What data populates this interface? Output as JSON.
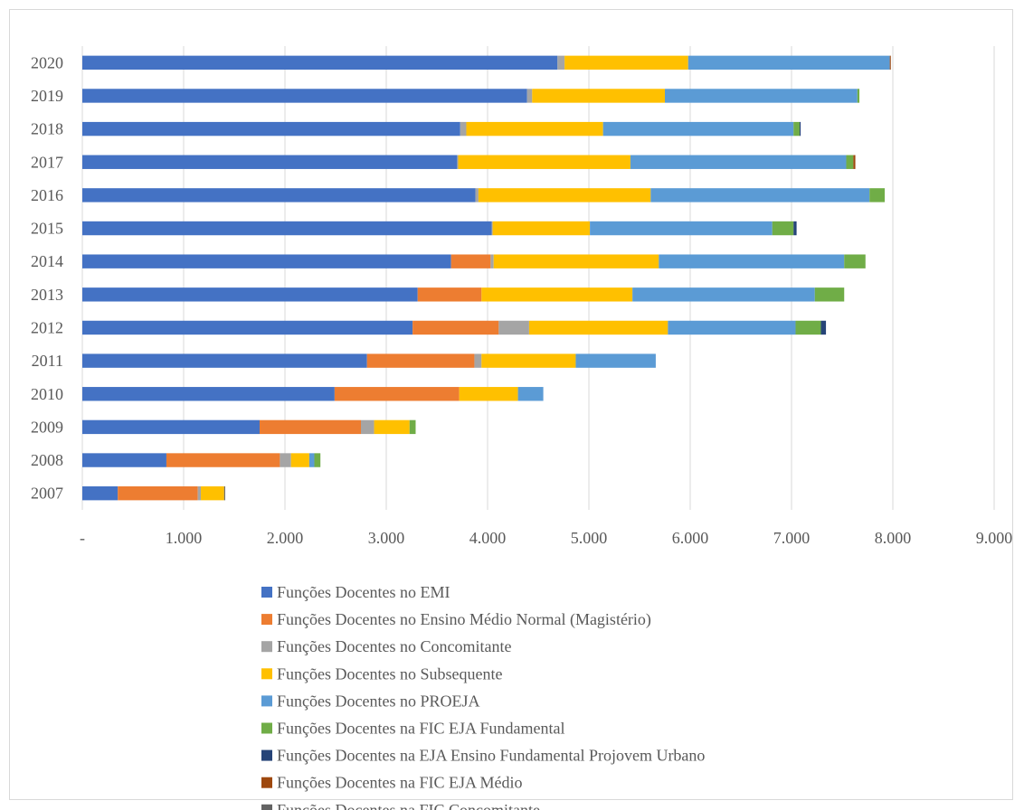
{
  "chart_data": {
    "type": "bar",
    "orientation": "horizontal",
    "stacked": true,
    "title": "",
    "xlabel": "",
    "ylabel": "",
    "xlim": [
      0,
      9000
    ],
    "x_ticks": [
      0,
      1000,
      2000,
      3000,
      4000,
      5000,
      6000,
      7000,
      8000,
      9000
    ],
    "x_tick_labels": [
      "-",
      "1.000",
      "2.000",
      "3.000",
      "4.000",
      "5.000",
      "6.000",
      "7.000",
      "8.000",
      "9.000"
    ],
    "grid": "vertical",
    "legend_position": "bottom",
    "categories": [
      "2020",
      "2019",
      "2018",
      "2017",
      "2016",
      "2015",
      "2014",
      "2013",
      "2012",
      "2011",
      "2010",
      "2009",
      "2008",
      "2007"
    ],
    "series": [
      {
        "name": "Funções Docentes no EMI",
        "color": "#4472C4",
        "values": [
          4690,
          4390,
          3730,
          3700,
          3880,
          4040,
          3640,
          3310,
          3260,
          2810,
          2490,
          1750,
          830,
          350
        ]
      },
      {
        "name": "Funções Docentes no Ensino Médio Normal (Magistério)",
        "color": "#ED7D31",
        "values": [
          0,
          0,
          0,
          0,
          0,
          0,
          390,
          630,
          850,
          1060,
          1230,
          1000,
          1120,
          790
        ]
      },
      {
        "name": "Funções Docentes no Concomitante",
        "color": "#A5A5A5",
        "values": [
          70,
          50,
          60,
          10,
          30,
          10,
          30,
          0,
          300,
          70,
          0,
          130,
          110,
          30
        ]
      },
      {
        "name": "Funções Docentes no Subsequente",
        "color": "#FFC000",
        "values": [
          1220,
          1310,
          1350,
          1700,
          1700,
          960,
          1630,
          1490,
          1370,
          930,
          580,
          350,
          180,
          230
        ]
      },
      {
        "name": "Funções Docentes no PROEJA",
        "color": "#5B9BD5",
        "values": [
          1990,
          1900,
          1880,
          2130,
          2160,
          1800,
          1830,
          1800,
          1260,
          790,
          250,
          0,
          50,
          0
        ]
      },
      {
        "name": "Funções Docentes na FIC EJA Fundamental",
        "color": "#70AD47",
        "values": [
          0,
          20,
          60,
          70,
          150,
          210,
          210,
          290,
          250,
          0,
          0,
          60,
          60,
          0
        ]
      },
      {
        "name": "Funções Docentes na EJA Ensino Fundamental Projovem Urbano",
        "color": "#264478",
        "values": [
          0,
          0,
          10,
          0,
          0,
          30,
          0,
          0,
          50,
          0,
          0,
          0,
          0,
          0
        ]
      },
      {
        "name": "Funções Docentes na FIC EJA Médio",
        "color": "#9E480E",
        "values": [
          10,
          0,
          0,
          20,
          0,
          0,
          0,
          0,
          0,
          0,
          0,
          0,
          0,
          0
        ]
      },
      {
        "name": "Funções Docentes na FIC Concomitante",
        "color": "#636363",
        "values": [
          0,
          0,
          0,
          0,
          0,
          0,
          0,
          0,
          0,
          0,
          0,
          0,
          0,
          10
        ]
      }
    ]
  }
}
